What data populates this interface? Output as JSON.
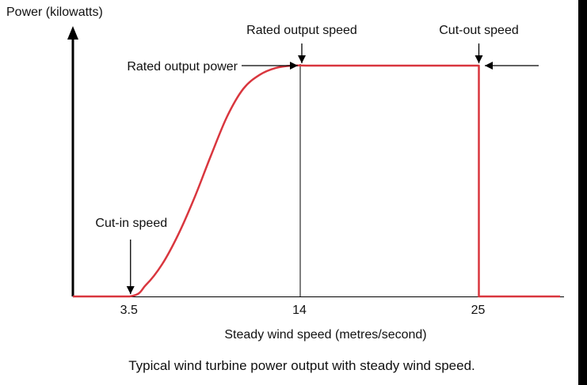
{
  "chart_data": {
    "type": "line",
    "ylabel": "Power (kilowatts)",
    "xlabel": "Steady wind speed (metres/second)",
    "caption": "Typical wind turbine power output with steady wind speed.",
    "x_ticks": [
      "3.5",
      "14",
      "25"
    ],
    "xlim": [
      0,
      30
    ],
    "ylim": [
      0,
      1.15
    ],
    "series": [
      {
        "color": "#d9363e",
        "x": [
          0,
          3.5,
          4.5,
          5.5,
          6.5,
          7.5,
          8.5,
          9.5,
          10.5,
          11.5,
          12.5,
          13.5,
          14.5,
          15.5,
          25,
          25,
          26,
          30
        ],
        "y": [
          0,
          0,
          0.05,
          0.14,
          0.27,
          0.43,
          0.61,
          0.78,
          0.9,
          0.96,
          0.99,
          1.0,
          1.0,
          1.0,
          1.0,
          0,
          0,
          0
        ]
      }
    ],
    "annotations": {
      "cut_in": {
        "text": "Cut-in speed",
        "x": 3.5
      },
      "rated_speed": {
        "text": "Rated output speed",
        "x": 14
      },
      "cut_out": {
        "text": "Cut-out speed",
        "x": 25
      },
      "rated_power": {
        "text": "Rated output power",
        "y": 1.0
      }
    }
  }
}
